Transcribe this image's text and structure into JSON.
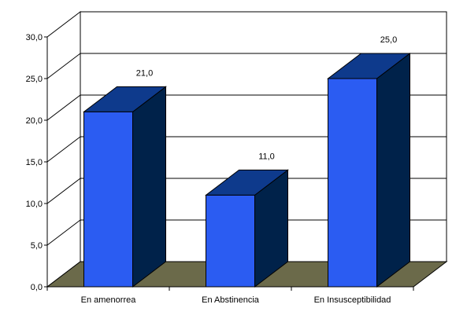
{
  "chart_data": {
    "type": "bar",
    "categories": [
      "En amenorrea",
      "En Abstinencia",
      "En Insusceptibilidad"
    ],
    "values": [
      21.0,
      11.0,
      25.0
    ],
    "data_labels": [
      "21,0",
      "11,0",
      "25,0"
    ],
    "title": "",
    "xlabel": "",
    "ylabel": "",
    "ylim": [
      0,
      30
    ],
    "y_ticks": [
      "0,0",
      "5,0",
      "10,0",
      "15,0",
      "20,0",
      "25,0",
      "30,0"
    ],
    "grid": true,
    "legend": "none",
    "three_d": true,
    "colors": {
      "bar_front": "#2b5cf2",
      "bar_side": "#00224a",
      "bar_top": "#0e3a8c",
      "floor": "#6b6a4a",
      "gridline": "#000000",
      "axis": "#000000"
    }
  }
}
